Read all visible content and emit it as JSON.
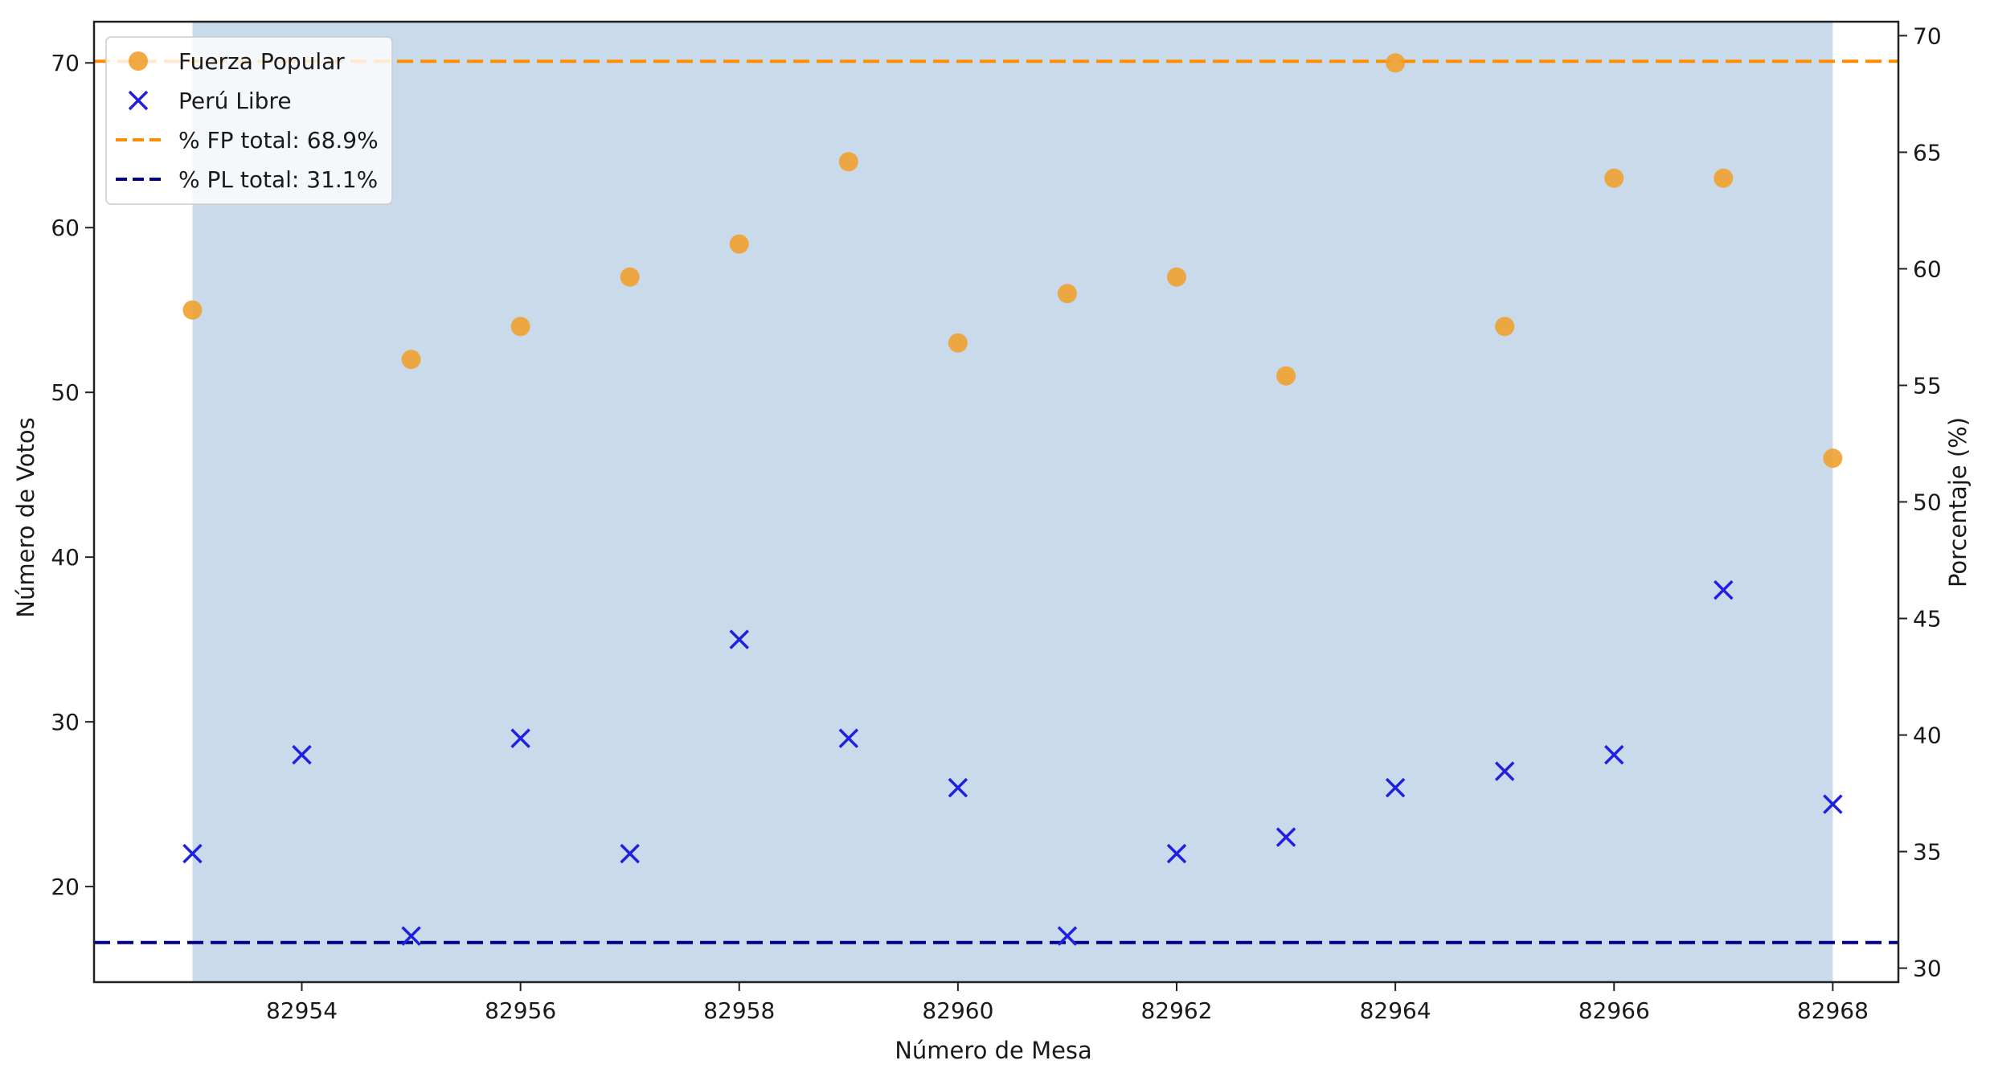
{
  "chart_data": {
    "type": "scatter",
    "xlabel": "Número de Mesa",
    "ylabel": "Número de Votos",
    "y2label": "Porcentaje (%)",
    "x": [
      82953,
      82954,
      82955,
      82956,
      82957,
      82958,
      82959,
      82960,
      82961,
      82962,
      82963,
      82964,
      82965,
      82966,
      82967,
      82968
    ],
    "xlim": [
      82952.1,
      82968.6
    ],
    "ylim": [
      14.2,
      72.5
    ],
    "y2lim": [
      29.4,
      70.6
    ],
    "x_ticks": [
      82954,
      82956,
      82958,
      82960,
      82962,
      82964,
      82966,
      82968
    ],
    "y_ticks": [
      20,
      30,
      40,
      50,
      60,
      70
    ],
    "y2_ticks": [
      30,
      35,
      40,
      45,
      50,
      55,
      60,
      65,
      70
    ],
    "shaded_x_range": [
      82953,
      82968
    ],
    "series": [
      {
        "name": "Fuerza Popular",
        "marker": "circle",
        "color": "#f0a030",
        "values": [
          55,
          null,
          52,
          54,
          57,
          59,
          64,
          53,
          56,
          57,
          51,
          70,
          54,
          63,
          63,
          46
        ]
      },
      {
        "name": "Perú Libre",
        "marker": "x",
        "color": "#2020e0",
        "values": [
          22,
          28,
          17,
          29,
          22,
          35,
          29,
          26,
          17,
          22,
          23,
          26,
          27,
          28,
          38,
          25
        ]
      }
    ],
    "reference_lines": [
      {
        "name": "% FP total: 68.9%",
        "axis": "y2",
        "value": 68.9,
        "color": "#ff8c00",
        "style": "dashed"
      },
      {
        "name": "% PL total: 31.1%",
        "axis": "y2",
        "value": 31.1,
        "color": "#00008b",
        "style": "dashed"
      }
    ],
    "legend": "top-left",
    "grid": false,
    "colors": {
      "shade": "#c9dbea",
      "axes": "#222222"
    }
  }
}
